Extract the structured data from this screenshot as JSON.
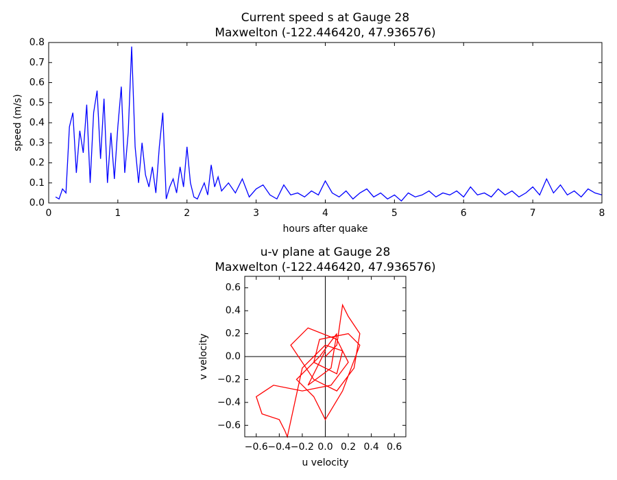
{
  "chart_data": [
    {
      "type": "line",
      "title": [
        "Current speed s at Gauge 28",
        "Maxwelton  (-122.446420, 47.936576)"
      ],
      "xlabel": "hours after quake",
      "ylabel": "speed (m/s)",
      "xlim": [
        0,
        8
      ],
      "xticks": [
        0,
        1,
        2,
        3,
        4,
        5,
        6,
        7,
        8
      ],
      "ylim": [
        0,
        0.8
      ],
      "yticks": [
        {
          "value": 0,
          "label": "0.0"
        },
        0.1,
        0.2,
        0.3,
        0.4,
        0.5,
        0.6,
        0.7,
        0.8
      ],
      "series": [
        {
          "color": "#0000ff",
          "x": [
            0.1,
            0.15,
            0.2,
            0.25,
            0.3,
            0.35,
            0.4,
            0.45,
            0.5,
            0.55,
            0.6,
            0.65,
            0.7,
            0.75,
            0.8,
            0.85,
            0.9,
            0.95,
            1.0,
            1.05,
            1.1,
            1.15,
            1.2,
            1.25,
            1.3,
            1.35,
            1.4,
            1.45,
            1.5,
            1.55,
            1.6,
            1.65,
            1.7,
            1.75,
            1.8,
            1.85,
            1.9,
            1.95,
            2.0,
            2.05,
            2.1,
            2.15,
            2.2,
            2.25,
            2.3,
            2.35,
            2.4,
            2.45,
            2.5,
            2.6,
            2.7,
            2.8,
            2.9,
            3.0,
            3.1,
            3.2,
            3.3,
            3.4,
            3.5,
            3.6,
            3.7,
            3.8,
            3.9,
            4.0,
            4.1,
            4.2,
            4.3,
            4.4,
            4.5,
            4.6,
            4.7,
            4.8,
            4.9,
            5.0,
            5.1,
            5.2,
            5.3,
            5.4,
            5.5,
            5.6,
            5.7,
            5.8,
            5.9,
            6.0,
            6.1,
            6.2,
            6.3,
            6.4,
            6.5,
            6.6,
            6.7,
            6.8,
            6.9,
            7.0,
            7.1,
            7.2,
            7.3,
            7.4,
            7.5,
            7.6,
            7.7,
            7.8,
            7.9,
            8.0
          ],
          "values": [
            0.03,
            0.02,
            0.07,
            0.05,
            0.38,
            0.45,
            0.15,
            0.36,
            0.25,
            0.49,
            0.1,
            0.45,
            0.56,
            0.22,
            0.52,
            0.1,
            0.35,
            0.12,
            0.38,
            0.58,
            0.15,
            0.35,
            0.78,
            0.28,
            0.1,
            0.3,
            0.14,
            0.08,
            0.18,
            0.05,
            0.28,
            0.45,
            0.02,
            0.08,
            0.12,
            0.05,
            0.18,
            0.08,
            0.28,
            0.1,
            0.03,
            0.02,
            0.06,
            0.1,
            0.04,
            0.19,
            0.08,
            0.13,
            0.06,
            0.1,
            0.05,
            0.12,
            0.03,
            0.07,
            0.09,
            0.04,
            0.02,
            0.09,
            0.04,
            0.05,
            0.03,
            0.06,
            0.04,
            0.11,
            0.05,
            0.03,
            0.06,
            0.02,
            0.05,
            0.07,
            0.03,
            0.05,
            0.02,
            0.04,
            0.01,
            0.05,
            0.03,
            0.04,
            0.06,
            0.03,
            0.05,
            0.04,
            0.06,
            0.03,
            0.08,
            0.04,
            0.05,
            0.03,
            0.07,
            0.04,
            0.06,
            0.03,
            0.05,
            0.08,
            0.04,
            0.12,
            0.05,
            0.09,
            0.04,
            0.06,
            0.03,
            0.07,
            0.05,
            0.04
          ]
        }
      ]
    },
    {
      "type": "line",
      "title": [
        "u-v plane at Gauge 28",
        "Maxwelton  (-122.446420, 47.936576)"
      ],
      "xlabel": "u velocity",
      "ylabel": "v velocity",
      "xlim": [
        -0.7,
        0.7
      ],
      "xticks": [
        {
          "value": -0.6,
          "label": "−0.6"
        },
        {
          "value": -0.4,
          "label": "−0.4"
        },
        {
          "value": -0.2,
          "label": "−0.2"
        },
        {
          "value": 0,
          "label": "0.0"
        },
        0.2,
        0.4,
        0.6
      ],
      "ylim": [
        -0.7,
        0.7
      ],
      "yticks": [
        {
          "value": -0.6,
          "label": "−0.6"
        },
        {
          "value": -0.4,
          "label": "−0.4"
        },
        {
          "value": -0.2,
          "label": "−0.2"
        },
        {
          "value": 0,
          "label": "0.0"
        },
        0.2,
        0.4,
        0.6
      ],
      "crosshair": true,
      "series": [
        {
          "color": "#ff0000",
          "x": [
            0.0,
            0.1,
            0.15,
            0.2,
            0.3,
            0.25,
            0.1,
            -0.1,
            -0.3,
            -0.15,
            0.1,
            0.2,
            0.05,
            -0.2,
            -0.45,
            -0.6,
            -0.55,
            -0.4,
            -0.35,
            -0.33,
            -0.2,
            0.0,
            0.15,
            0.1,
            -0.1,
            -0.05,
            0.2,
            0.3,
            0.15,
            0.0,
            -0.1,
            -0.25,
            -0.05,
            0.1,
            0.05,
            -0.15,
            0.0
          ],
          "values": [
            0.0,
            0.1,
            0.45,
            0.35,
            0.2,
            -0.1,
            -0.3,
            -0.2,
            0.1,
            0.25,
            0.15,
            -0.05,
            -0.25,
            -0.3,
            -0.25,
            -0.35,
            -0.5,
            -0.55,
            -0.65,
            -0.7,
            -0.1,
            0.1,
            0.05,
            -0.15,
            -0.05,
            0.15,
            0.2,
            0.1,
            -0.3,
            -0.55,
            -0.35,
            -0.2,
            0.0,
            0.2,
            -0.1,
            -0.25,
            0.05
          ]
        }
      ]
    }
  ]
}
